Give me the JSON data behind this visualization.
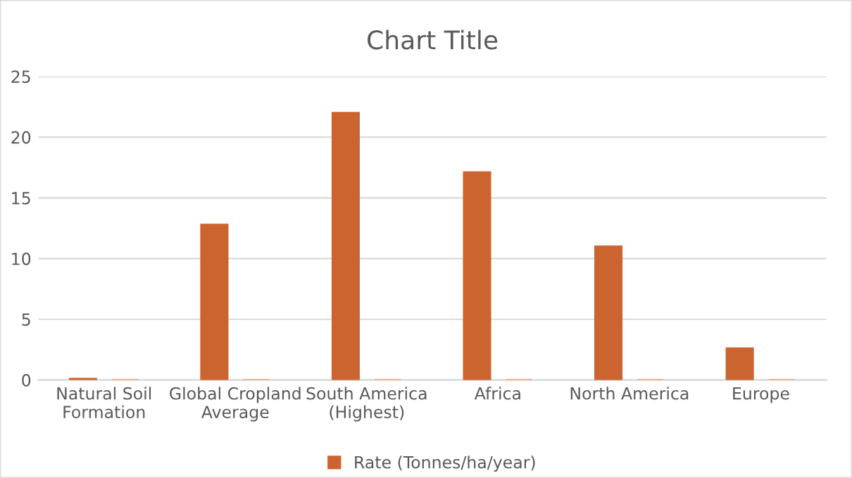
{
  "chart_data": {
    "type": "bar",
    "title": "Chart Title",
    "categories": [
      "Natural Soil\nFormation",
      "Global Cropland\nAverage",
      "South America\n(Highest)",
      "Africa",
      "North America",
      "Europe"
    ],
    "series": [
      {
        "name": "Rate (Tonnes/ha/year)",
        "color": "#cc6430",
        "values": [
          0.1,
          12.8,
          22,
          17.1,
          11,
          2.6
        ]
      },
      {
        "color": "#f0a070",
        "values": [
          0,
          0,
          0,
          0,
          0,
          0
        ]
      }
    ],
    "ylim": [
      0,
      25
    ],
    "yticks": [
      0,
      5,
      10,
      15,
      20,
      25
    ],
    "grid": "y",
    "legend": "bottom"
  }
}
